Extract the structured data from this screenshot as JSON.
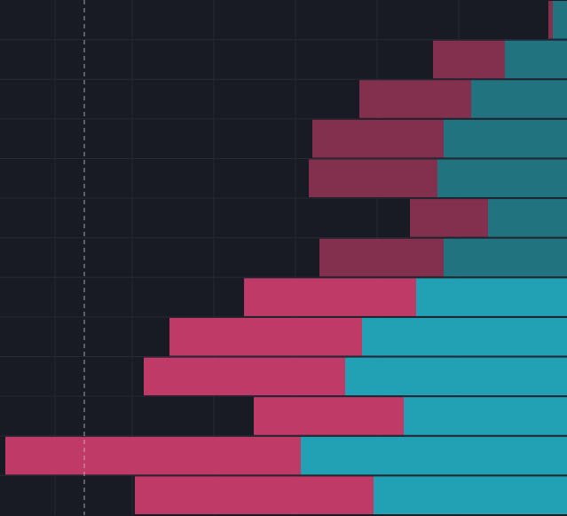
{
  "chart_data": {
    "type": "bar",
    "orientation": "horizontal",
    "stacked": true,
    "x_reversed": true,
    "categories": [
      null,
      null,
      null,
      null,
      null,
      null,
      null,
      null,
      null,
      null,
      null,
      null,
      null
    ],
    "series": [
      {
        "color": "#22a0b4",
        "dim_color": "#21737f",
        "values": [
          16,
          70,
          108,
          139,
          146,
          89,
          139,
          170,
          231,
          250,
          184,
          300,
          218
        ]
      },
      {
        "color": "#bf3a66",
        "dim_color": "#83304f",
        "values": [
          5,
          81,
          126,
          148,
          145,
          88,
          140,
          194,
          217,
          227,
          169,
          333,
          269
        ]
      }
    ],
    "dimmed": [
      true,
      true,
      true,
      true,
      true,
      true,
      true,
      false,
      false,
      false,
      false,
      false,
      false
    ],
    "xlim": [
      0,
      639
    ],
    "xticks": [
      122,
      214,
      306,
      398,
      490,
      577
    ],
    "grid": true,
    "reference_line": 544
  }
}
